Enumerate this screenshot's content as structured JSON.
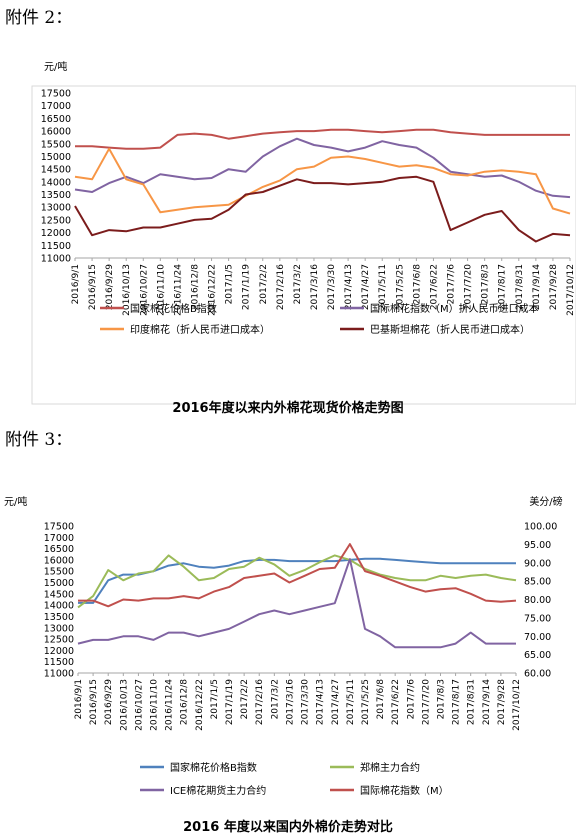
{
  "section1": {
    "heading": "附件 2：",
    "caption": "2016年度以来内外棉花现货价格走势图"
  },
  "section2": {
    "heading": "附件 3：",
    "caption": "2016 年度以来国内外棉价走势对比"
  },
  "chart_data": [
    {
      "type": "line",
      "title": "",
      "ylabel": "元/吨",
      "ylim": [
        11000,
        17500
      ],
      "yticks": [
        "11000",
        "11500",
        "12000",
        "12500",
        "13000",
        "13500",
        "14000",
        "14500",
        "15000",
        "15500",
        "16000",
        "16500",
        "17000",
        "17500"
      ],
      "x_tick_labels": [
        "2016/9/1",
        "2016/9/15",
        "2016/9/29",
        "2016/10/13",
        "2016/10/27",
        "2016/11/10",
        "2016/11/24",
        "2016/12/8",
        "2016/12/22",
        "2017/1/5",
        "2017/1/19",
        "2017/2/2",
        "2017/2/16",
        "2017/3/2",
        "2017/3/16",
        "2017/3/30",
        "2017/4/13",
        "2017/4/27",
        "2017/5/11",
        "2017/5/25",
        "2017/6/8",
        "2017/6/22",
        "2017/7/6",
        "2017/7/20",
        "2017/8/3",
        "2017/8/17",
        "2017/8/31",
        "2017/9/14",
        "2017/9/28",
        "2017/10/12"
      ],
      "legend_position": "bottom",
      "grid": false,
      "series": [
        {
          "name": "国家棉花价格B指数",
          "color": "#c0504d",
          "values": [
            15400,
            15400,
            15350,
            15300,
            15300,
            15350,
            15850,
            15900,
            15850,
            15700,
            15800,
            15900,
            15950,
            16000,
            16000,
            16050,
            16050,
            16000,
            15950,
            16000,
            16050,
            16050,
            15950,
            15900,
            15850,
            15850,
            15850,
            15850,
            15850,
            15850
          ]
        },
        {
          "name": "国际棉花指数（M）折人民币进口成本",
          "color": "#8064a2",
          "values": [
            13700,
            13600,
            13950,
            14200,
            13950,
            14300,
            14200,
            14100,
            14150,
            14500,
            14400,
            15000,
            15400,
            15700,
            15450,
            15350,
            15200,
            15350,
            15600,
            15450,
            15350,
            14950,
            14400,
            14300,
            14200,
            14250,
            14000,
            13650,
            13450,
            13400
          ]
        },
        {
          "name": "印度棉花（折人民币进口成本）",
          "color": "#f79646",
          "values": [
            14200,
            14100,
            15300,
            14100,
            13900,
            12800,
            12900,
            13000,
            13050,
            13100,
            13450,
            13800,
            14050,
            14500,
            14600,
            14950,
            15000,
            14900,
            14750,
            14600,
            14650,
            14550,
            14300,
            14250,
            14400,
            14450,
            14400,
            14300,
            12950,
            12750
          ]
        },
        {
          "name": "巴基斯坦棉花（折人民币进口成本）",
          "color": "#7b1c1c",
          "values": [
            13050,
            11900,
            12100,
            12050,
            12200,
            12200,
            12350,
            12500,
            12550,
            12900,
            13500,
            13600,
            13850,
            14100,
            13950,
            13950,
            13900,
            13950,
            14000,
            14150,
            14200,
            14000,
            12100,
            12400,
            12700,
            12850,
            12100,
            11650,
            11950,
            11900
          ]
        }
      ]
    },
    {
      "type": "line",
      "title": "",
      "ylabel": "元/吨",
      "y2label": "美分/磅",
      "ylim": [
        11000,
        17500
      ],
      "y2lim": [
        60,
        100
      ],
      "yticks": [
        "11000",
        "11500",
        "12000",
        "12500",
        "13000",
        "13500",
        "14000",
        "14500",
        "15000",
        "15500",
        "16000",
        "16500",
        "17000",
        "17500"
      ],
      "y2ticks": [
        "60.00",
        "65.00",
        "70.00",
        "75.00",
        "80.00",
        "85.00",
        "90.00",
        "95.00",
        "100.00"
      ],
      "x_tick_labels": [
        "2016/9/1",
        "2016/9/15",
        "2016/9/29",
        "2016/10/13",
        "2016/10/27",
        "2016/11/10",
        "2016/11/24",
        "2016/12/8",
        "2016/12/22",
        "2017/1/5",
        "2017/1/19",
        "2017/2/2",
        "2017/2/16",
        "2017/3/2",
        "2017/3/16",
        "2017/3/30",
        "2017/4/13",
        "2017/4/27",
        "2017/5/11",
        "2017/5/25",
        "2017/6/8",
        "2017/6/22",
        "2017/7/6",
        "2017/7/20",
        "2017/8/3",
        "2017/8/17",
        "2017/8/31",
        "2017/9/14",
        "2017/9/28",
        "2017/10/12"
      ],
      "legend_position": "bottom",
      "grid": false,
      "series": [
        {
          "name": "国家棉花价格B指数",
          "color": "#4f81bd",
          "axis": "left",
          "values": [
            14100,
            14100,
            15100,
            15350,
            15350,
            15500,
            15750,
            15850,
            15700,
            15650,
            15750,
            15950,
            16000,
            16000,
            15950,
            15950,
            15950,
            15950,
            16000,
            16050,
            16050,
            16000,
            15950,
            15900,
            15850,
            15850,
            15850,
            15850,
            15850,
            15850
          ]
        },
        {
          "name": "郑棉主力合约",
          "color": "#9bbb59",
          "axis": "left",
          "values": [
            13900,
            14400,
            15550,
            15100,
            15400,
            15500,
            16200,
            15700,
            15100,
            15200,
            15600,
            15700,
            16100,
            15800,
            15300,
            15550,
            15900,
            16200,
            16000,
            15600,
            15350,
            15200,
            15100,
            15100,
            15300,
            15200,
            15300,
            15350,
            15200,
            15100
          ]
        },
        {
          "name": "ICE棉花期货主力合约",
          "color": "#8064a2",
          "axis": "right",
          "values": [
            68,
            69,
            69,
            70,
            70,
            69,
            71,
            71,
            70,
            71,
            72,
            74,
            76,
            77,
            76,
            77,
            78,
            79,
            91,
            72,
            70,
            67,
            67,
            67,
            67,
            68,
            71,
            68,
            68,
            68
          ]
        },
        {
          "name": "国际棉花指数（M）",
          "color": "#c0504d",
          "axis": "left",
          "values": [
            14200,
            14200,
            13950,
            14250,
            14200,
            14300,
            14300,
            14400,
            14300,
            14600,
            14800,
            15200,
            15300,
            15400,
            15000,
            15300,
            15600,
            15650,
            16700,
            15500,
            15300,
            15050,
            14800,
            14600,
            14700,
            14750,
            14500,
            14200,
            14150,
            14200
          ]
        }
      ]
    }
  ]
}
